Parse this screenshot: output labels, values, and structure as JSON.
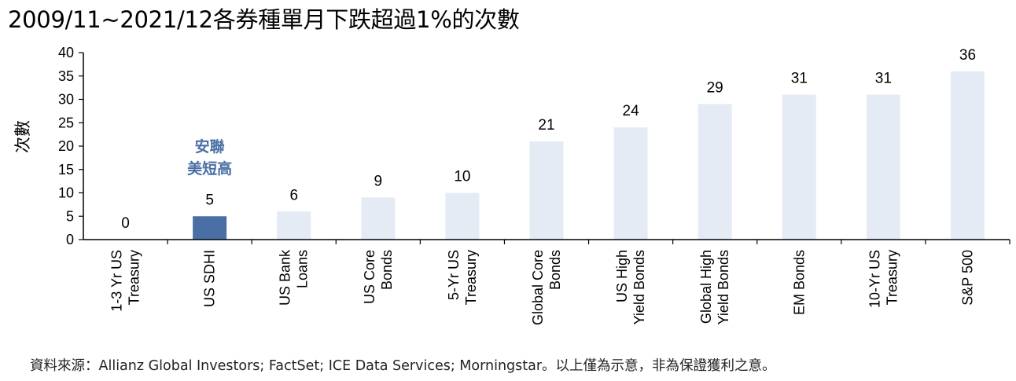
{
  "title": "2009/11~2021/12各券種單月下跌超過1%的次數",
  "source": "資料來源：Allianz Global Investors; FactSet; ICE Data Services; Morningstar。以上僅為示意，非為保證獲利之意。",
  "colors": {
    "bar": "#e4ebf5",
    "highlight_bar": "#4a6fa5",
    "highlight_text": "#4a6fa5",
    "axis": "#000000"
  },
  "chart_data": {
    "type": "bar",
    "ylabel": "次數",
    "ylim": [
      0,
      40
    ],
    "yticks": [
      0,
      5,
      10,
      15,
      20,
      25,
      30,
      35,
      40
    ],
    "categories": [
      [
        "1-3 Yr US",
        "Treasury"
      ],
      [
        "US SDHI"
      ],
      [
        "US Bank",
        "Loans"
      ],
      [
        "US Core",
        "Bonds"
      ],
      [
        "5-Yr US",
        "Treasury"
      ],
      [
        "Global Core",
        "Bonds"
      ],
      [
        "US High",
        "Yield Bonds"
      ],
      [
        "Global High",
        "Yield Bonds"
      ],
      [
        "EM Bonds"
      ],
      [
        "10-Yr US",
        "Treasury"
      ],
      [
        "S&P 500"
      ]
    ],
    "values": [
      0,
      5,
      6,
      9,
      10,
      21,
      24,
      29,
      31,
      31,
      36
    ],
    "highlight_index": 1,
    "highlight_annotation": [
      "安聯",
      "美短高"
    ],
    "grid": false
  }
}
